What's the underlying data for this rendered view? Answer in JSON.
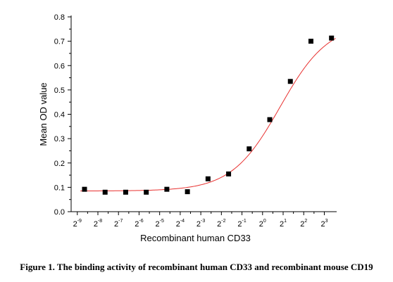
{
  "figure": {
    "caption": "Figure 1. The binding activity of recombinant human CD33 and recombinant mouse CD19"
  },
  "chart_data": {
    "type": "scatter",
    "title": "",
    "xlabel": "Recombinant human CD33",
    "ylabel": "Mean OD value",
    "xscale": "log2",
    "x_ticks": [
      {
        "base": "2",
        "exp": "-9",
        "value": -9
      },
      {
        "base": "2",
        "exp": "-8",
        "value": -8
      },
      {
        "base": "2",
        "exp": "-7",
        "value": -7
      },
      {
        "base": "2",
        "exp": "-6",
        "value": -6
      },
      {
        "base": "2",
        "exp": "-5",
        "value": -5
      },
      {
        "base": "2",
        "exp": "-4",
        "value": -4
      },
      {
        "base": "2",
        "exp": "-3",
        "value": -3
      },
      {
        "base": "2",
        "exp": "-2",
        "value": -2
      },
      {
        "base": "2",
        "exp": "-1",
        "value": -1
      },
      {
        "base": "2",
        "exp": "0",
        "value": 0
      },
      {
        "base": "2",
        "exp": "1",
        "value": 1
      },
      {
        "base": "2",
        "exp": "2",
        "value": 2
      },
      {
        "base": "2",
        "exp": "3",
        "value": 3
      }
    ],
    "y_ticks": [
      "0.0",
      "0.1",
      "0.2",
      "0.3",
      "0.4",
      "0.5",
      "0.6",
      "0.7",
      "0.8"
    ],
    "xlim": [
      -9.3,
      3.6
    ],
    "ylim": [
      0,
      0.8
    ],
    "series": [
      {
        "marker": "square",
        "color": "#000000",
        "points": [
          {
            "x": -8.65,
            "y": 0.092
          },
          {
            "x": -7.65,
            "y": 0.08
          },
          {
            "x": -6.65,
            "y": 0.08
          },
          {
            "x": -5.65,
            "y": 0.08
          },
          {
            "x": -4.65,
            "y": 0.092
          },
          {
            "x": -3.65,
            "y": 0.082
          },
          {
            "x": -2.65,
            "y": 0.135
          },
          {
            "x": -1.65,
            "y": 0.155
          },
          {
            "x": -0.65,
            "y": 0.258
          },
          {
            "x": 0.35,
            "y": 0.378
          },
          {
            "x": 1.35,
            "y": 0.535
          },
          {
            "x": 2.35,
            "y": 0.7
          },
          {
            "x": 3.35,
            "y": 0.713
          }
        ]
      }
    ],
    "fit_curve": {
      "color": "#e8302f",
      "model": "4PL",
      "bottom": 0.085,
      "top": 0.775,
      "x_mid": 0.85,
      "slope": 0.85
    },
    "grid": false
  }
}
